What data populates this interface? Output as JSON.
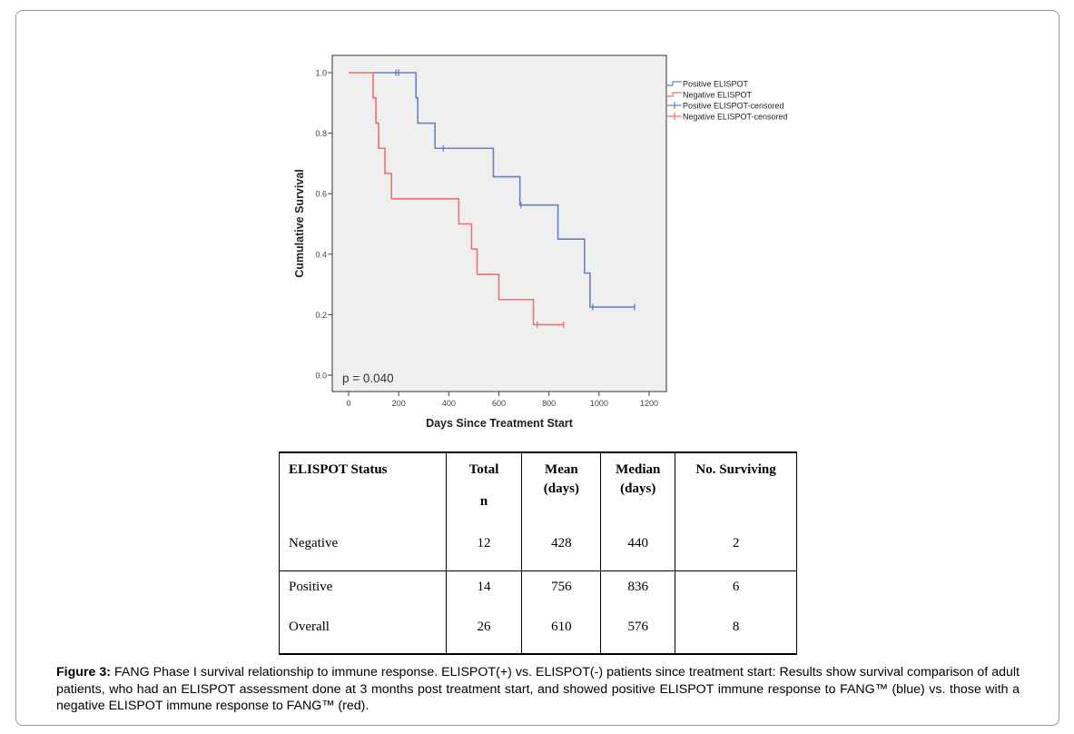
{
  "chart_data": {
    "type": "line",
    "subtype": "kaplan-meier-step",
    "xlabel": "Days Since Treatment Start",
    "ylabel": "Cumulative Survival",
    "xlim": [
      -50,
      1280
    ],
    "ylim": [
      -0.05,
      1.05
    ],
    "xticks": [
      0,
      200,
      400,
      600,
      800,
      1000,
      1200
    ],
    "xtick_labels": [
      "0",
      "200",
      "400",
      "600",
      "800",
      "1000",
      "1200"
    ],
    "yticks": [
      0.0,
      0.2,
      0.4,
      0.6,
      0.8,
      1.0
    ],
    "ytick_labels": [
      "0.0",
      "0.2",
      "0.4",
      "0.6",
      "0.8",
      "1.0"
    ],
    "grid": false,
    "legend_position": "right",
    "annotation": "p = 0.040",
    "legend": [
      {
        "label": "Positive ELISPOT",
        "kind": "step",
        "color": "#6b80c4"
      },
      {
        "label": "Negative ELISPOT",
        "kind": "step",
        "color": "#ef6f74"
      },
      {
        "label": "Positive ELISPOT-censored",
        "kind": "censor",
        "color": "#6b80c4"
      },
      {
        "label": "Negative ELISPOT-censored",
        "kind": "censor",
        "color": "#ef6f74"
      }
    ],
    "series": [
      {
        "name": "Positive ELISPOT",
        "color": "#6b80c4",
        "start": [
          97,
          1.0
        ],
        "steps": [
          [
            269,
            0.917
          ],
          [
            276,
            0.833
          ],
          [
            345,
            0.75
          ],
          [
            578,
            0.656
          ],
          [
            684,
            0.5625
          ],
          [
            836,
            0.45
          ],
          [
            942,
            0.3375
          ],
          [
            964,
            0.225
          ]
        ],
        "end_x": 1142,
        "censored": [
          [
            189,
            1.0
          ],
          [
            200,
            1.0
          ],
          [
            378,
            0.75
          ],
          [
            688,
            0.5625
          ],
          [
            975,
            0.225
          ],
          [
            1142,
            0.225
          ]
        ]
      },
      {
        "name": "Negative ELISPOT",
        "color": "#ef6f74",
        "start": [
          0,
          1.0
        ],
        "steps": [
          [
            98,
            0.917
          ],
          [
            109,
            0.833
          ],
          [
            120,
            0.75
          ],
          [
            145,
            0.667
          ],
          [
            171,
            0.583
          ],
          [
            440,
            0.5
          ],
          [
            491,
            0.417
          ],
          [
            513,
            0.333
          ],
          [
            600,
            0.25
          ],
          [
            738,
            0.167
          ]
        ],
        "end_x": 858,
        "censored": [
          [
            753,
            0.167
          ],
          [
            858,
            0.167
          ]
        ]
      }
    ]
  },
  "table": {
    "headers": [
      {
        "line1": "ELISPOT Status",
        "line2": "",
        "line3": ""
      },
      {
        "line1": "Total",
        "line2": "",
        "line3": "n"
      },
      {
        "line1": "Mean",
        "line2": "(days)",
        "line3": ""
      },
      {
        "line1": "Median",
        "line2": "(days)",
        "line3": ""
      },
      {
        "line1": "No. Surviving",
        "line2": "",
        "line3": ""
      }
    ],
    "rows": [
      [
        "Negative",
        "12",
        "428",
        "440",
        "2"
      ],
      [
        "Positive",
        "14",
        "756",
        "836",
        "6"
      ],
      [
        "Overall",
        "26",
        "610",
        "576",
        "8"
      ]
    ]
  },
  "caption": {
    "label": "Figure 3:",
    "text": " FANG Phase I survival relationship to immune response.  ELISPOT(+) vs. ELISPOT(-) patients since treatment start:  Results show survival comparison of adult patients, who had an ELISPOT assessment done at 3 months post treatment start, and showed positive ELISPOT immune response to FANG™ (blue) vs. those with a negative ELISPOT immune response to FANG™ (red)."
  }
}
